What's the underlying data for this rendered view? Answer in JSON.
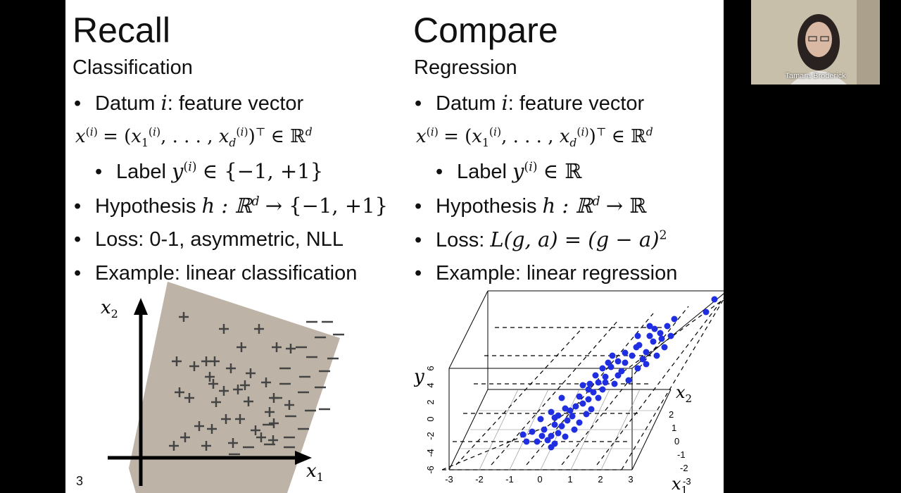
{
  "slide": {
    "number": "3",
    "left": {
      "heading": "Recall",
      "subheading": "Classification",
      "bullets": {
        "datum_prefix": "Datum ",
        "datum_var": "i",
        "datum_suffix": ": feature vector",
        "label_prefix": "Label ",
        "label_set": "∈ {−1, +1}",
        "hypothesis_prefix": "Hypothesis ",
        "hypothesis_expr": "h : ℝ",
        "hypothesis_codomain": "→ {−1, +1}",
        "loss": "Loss: 0-1, asymmetric, NLL",
        "example": "Example: linear classification"
      },
      "figure": {
        "x1_label": "x",
        "x1_sub": "1",
        "x2_label": "x",
        "x2_sub": "2"
      }
    },
    "right": {
      "heading": "Compare",
      "subheading": "Regression",
      "bullets": {
        "datum_prefix": "Datum ",
        "datum_var": "i",
        "datum_suffix": ": feature vector",
        "label_prefix": "Label ",
        "label_set": "∈ ℝ",
        "hypothesis_prefix": "Hypothesis ",
        "hypothesis_expr": "h : ℝ",
        "hypothesis_codomain": "→ ℝ",
        "loss_prefix": "Loss: ",
        "loss_expr": "L(g, a) = (g − a)",
        "example": "Example: linear regression"
      },
      "figure": {
        "y_label": "y",
        "x1_label": "x",
        "x1_sub": "1",
        "x2_label": "x",
        "x2_sub": "2",
        "y_ticks": [
          "6",
          "4",
          "2",
          "0",
          "-2",
          "-4",
          "-6"
        ],
        "x1_ticks": [
          "-3",
          "-2",
          "-1",
          "0",
          "1",
          "2",
          "3"
        ],
        "x2_ticks": [
          "2",
          "1",
          "0",
          "-1",
          "-2",
          "-3"
        ]
      }
    }
  },
  "webcam": {
    "participant_name": "Tamara Broderick"
  },
  "colors": {
    "region": "#bdb3a7",
    "points": "#1f2ee0",
    "background": "#000000"
  }
}
